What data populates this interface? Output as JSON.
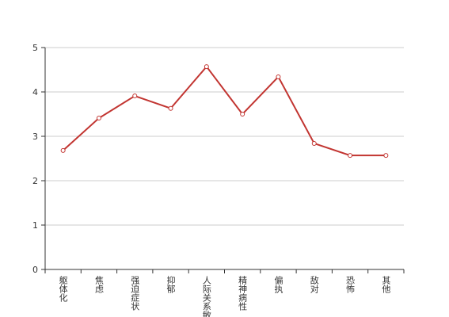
{
  "chart_data": {
    "type": "line",
    "categories": [
      "躯体化",
      "焦虑",
      "强迫症状",
      "抑郁",
      "人际关系敏感",
      "精神病性",
      "偏执",
      "敌对",
      "恐怖",
      "其他"
    ],
    "values": [
      2.68,
      3.41,
      3.91,
      3.63,
      4.57,
      3.5,
      4.34,
      2.84,
      2.57,
      2.57
    ],
    "color": "#c23531",
    "ylim": [
      0,
      5
    ],
    "yticks": [
      0,
      1,
      2,
      3,
      4,
      5
    ],
    "grid": true
  }
}
